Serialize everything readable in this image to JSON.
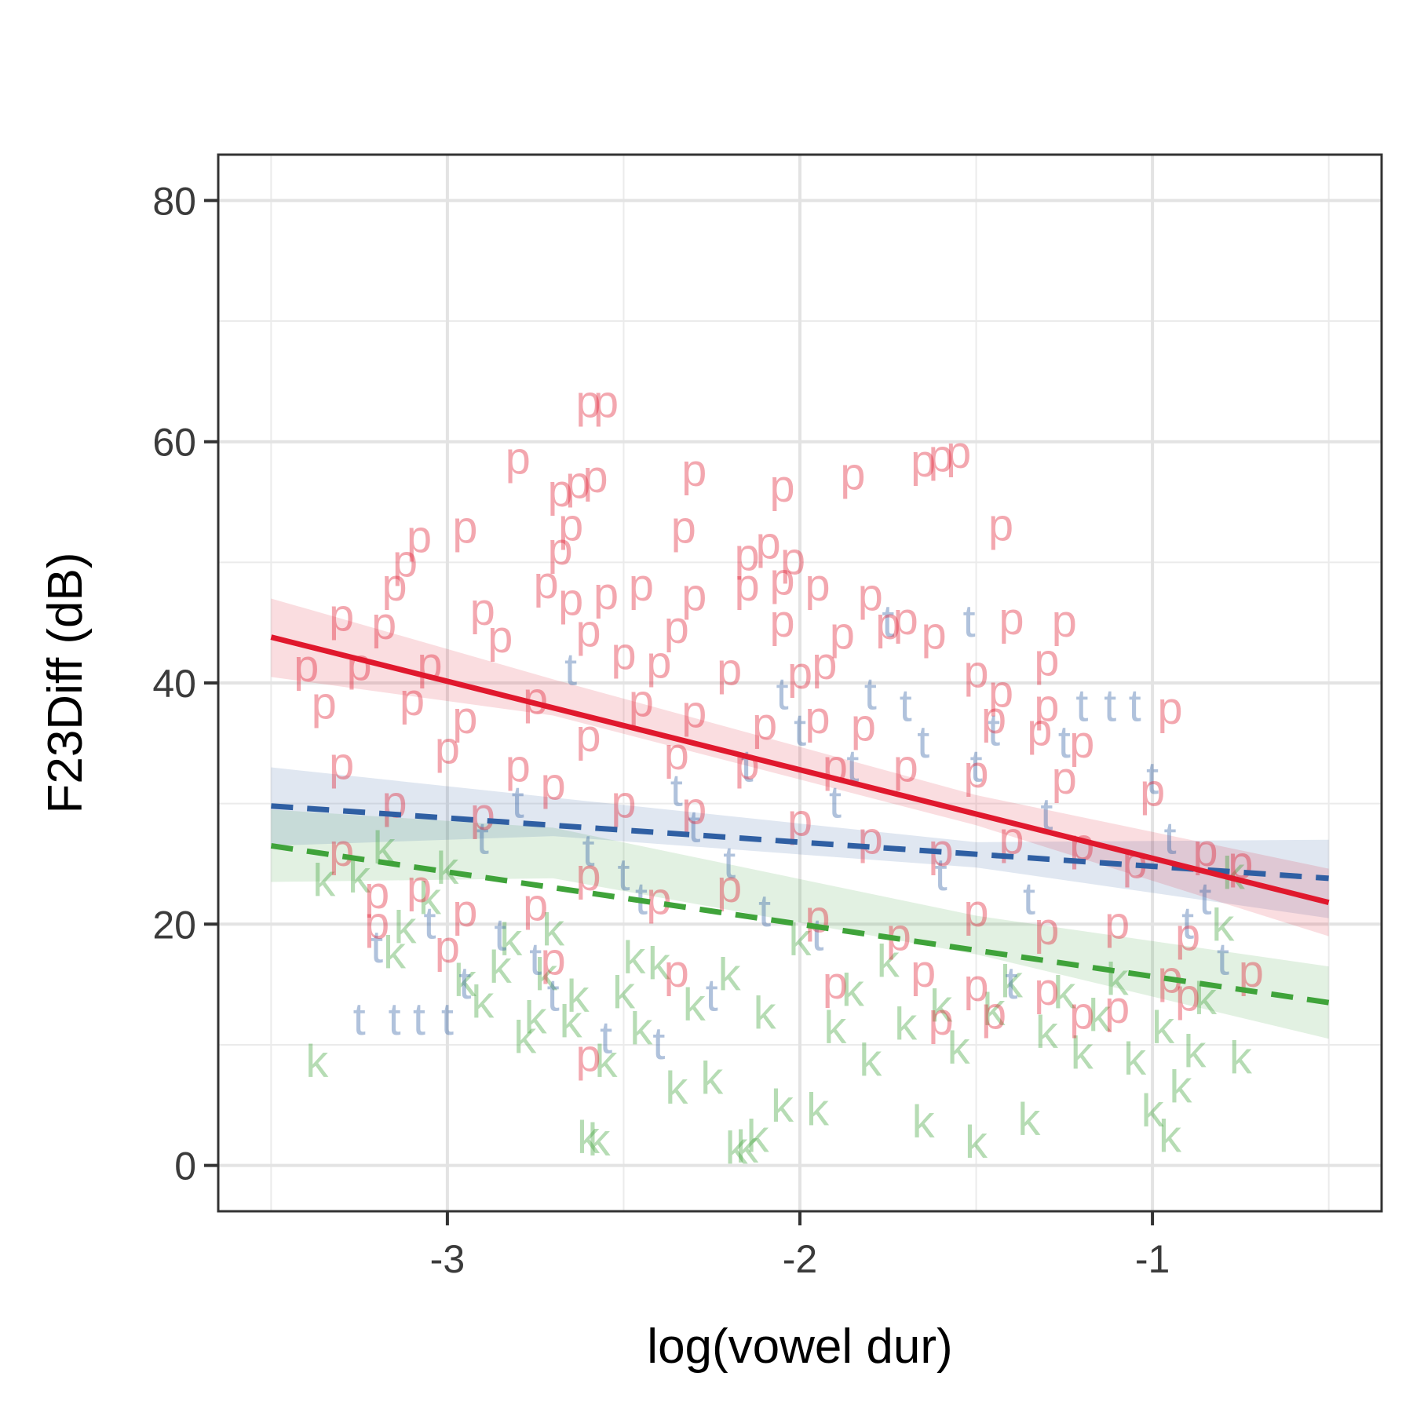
{
  "chart_data": {
    "type": "scatter",
    "title": "",
    "xlabel": "log(vowel dur)",
    "ylabel": "F23Diff (dB)",
    "xlim": [
      -3.65,
      -0.35
    ],
    "ylim": [
      -3.8,
      83.8
    ],
    "x_ticks": [
      -3,
      -2,
      -1
    ],
    "y_ticks": [
      0,
      20,
      40,
      60,
      80
    ],
    "x_minor": [
      -3.5,
      -2.5,
      -1.5,
      -0.5
    ],
    "y_minor": [
      10,
      30,
      50,
      70
    ],
    "grid": true,
    "legend": "none",
    "series": [
      {
        "label": "k",
        "color": "#3fa33a",
        "line_style": "dashed",
        "fit": {
          "x": [
            -3.5,
            -0.5
          ],
          "y": [
            26.5,
            13.5
          ]
        },
        "band": {
          "x": [
            -3.5,
            -2.7,
            -1.5,
            -0.5
          ],
          "lower": [
            23.5,
            23.8,
            17.5,
            10.5
          ],
          "upper": [
            29.5,
            28.0,
            20.7,
            16.5
          ]
        },
        "points": [
          [
            -3.37,
            8.5
          ],
          [
            -3.35,
            23.5
          ],
          [
            -3.25,
            23.8
          ],
          [
            -3.18,
            26.2
          ],
          [
            -3.15,
            17.5
          ],
          [
            -3.12,
            19.6
          ],
          [
            -3.05,
            22.0
          ],
          [
            -3.0,
            24.5
          ],
          [
            -2.95,
            15.2
          ],
          [
            -2.9,
            13.4
          ],
          [
            -2.85,
            16.3
          ],
          [
            -2.82,
            18.6
          ],
          [
            -2.78,
            10.5
          ],
          [
            -2.75,
            12.1
          ],
          [
            -2.72,
            15.7
          ],
          [
            -2.7,
            19.4
          ],
          [
            -2.65,
            11.8
          ],
          [
            -2.63,
            13.9
          ],
          [
            -2.6,
            2.2
          ],
          [
            -2.57,
            2.0
          ],
          [
            -2.55,
            8.5
          ],
          [
            -2.5,
            14.2
          ],
          [
            -2.47,
            17.1
          ],
          [
            -2.45,
            11.2
          ],
          [
            -2.4,
            16.6
          ],
          [
            -2.35,
            6.3
          ],
          [
            -2.3,
            13.2
          ],
          [
            -2.25,
            7.1
          ],
          [
            -2.2,
            15.7
          ],
          [
            -2.18,
            1.3
          ],
          [
            -2.15,
            1.4
          ],
          [
            -2.12,
            2.3
          ],
          [
            -2.1,
            12.5
          ],
          [
            -2.05,
            4.8
          ],
          [
            -2.0,
            18.6
          ],
          [
            -1.95,
            4.5
          ],
          [
            -1.9,
            11.3
          ],
          [
            -1.85,
            14.4
          ],
          [
            -1.8,
            8.6
          ],
          [
            -1.75,
            16.8
          ],
          [
            -1.7,
            11.6
          ],
          [
            -1.65,
            3.5
          ],
          [
            -1.6,
            13.1
          ],
          [
            -1.55,
            9.6
          ],
          [
            -1.5,
            1.8
          ],
          [
            -1.45,
            12.8
          ],
          [
            -1.4,
            15.1
          ],
          [
            -1.35,
            3.7
          ],
          [
            -1.3,
            10.9
          ],
          [
            -1.25,
            14.2
          ],
          [
            -1.2,
            9.2
          ],
          [
            -1.15,
            12.3
          ],
          [
            -1.1,
            15.3
          ],
          [
            -1.05,
            8.7
          ],
          [
            -1.0,
            4.4
          ],
          [
            -0.97,
            11.3
          ],
          [
            -0.95,
            2.3
          ],
          [
            -0.92,
            6.4
          ],
          [
            -0.88,
            9.3
          ],
          [
            -0.85,
            13.7
          ],
          [
            -0.8,
            19.8
          ],
          [
            -0.77,
            24.1
          ],
          [
            -0.75,
            8.8
          ]
        ]
      },
      {
        "label": "t",
        "color": "#2f5fa3",
        "line_style": "dashed",
        "fit": {
          "x": [
            -3.5,
            -0.5
          ],
          "y": [
            29.8,
            23.8
          ]
        },
        "band": {
          "x": [
            -3.5,
            -2.7,
            -1.5,
            -0.5
          ],
          "lower": [
            26.5,
            27.3,
            24.7,
            20.5
          ],
          "upper": [
            33.0,
            30.5,
            26.8,
            27.0
          ]
        },
        "points": [
          [
            -3.25,
            12.0
          ],
          [
            -3.2,
            18.0
          ],
          [
            -3.15,
            12.0
          ],
          [
            -3.08,
            12.0
          ],
          [
            -3.05,
            20.0
          ],
          [
            -3.0,
            12.0
          ],
          [
            -2.95,
            15.0
          ],
          [
            -2.9,
            27.0
          ],
          [
            -2.85,
            19.0
          ],
          [
            -2.8,
            30.0
          ],
          [
            -2.75,
            17.0
          ],
          [
            -2.7,
            14.0
          ],
          [
            -2.65,
            41.0
          ],
          [
            -2.6,
            26.0
          ],
          [
            -2.55,
            10.5
          ],
          [
            -2.5,
            24.0
          ],
          [
            -2.45,
            22.0
          ],
          [
            -2.4,
            10.0
          ],
          [
            -2.35,
            31.0
          ],
          [
            -2.3,
            28.0
          ],
          [
            -2.25,
            14.0
          ],
          [
            -2.2,
            25.0
          ],
          [
            -2.15,
            33.0
          ],
          [
            -2.1,
            21.0
          ],
          [
            -2.05,
            39.0
          ],
          [
            -2.0,
            36.0
          ],
          [
            -1.95,
            19.0
          ],
          [
            -1.9,
            30.0
          ],
          [
            -1.85,
            33.0
          ],
          [
            -1.8,
            39.0
          ],
          [
            -1.75,
            45.0
          ],
          [
            -1.7,
            38.0
          ],
          [
            -1.65,
            35.0
          ],
          [
            -1.6,
            24.0
          ],
          [
            -1.52,
            45.0
          ],
          [
            -1.5,
            33.0
          ],
          [
            -1.45,
            36.0
          ],
          [
            -1.4,
            15.0
          ],
          [
            -1.35,
            22.0
          ],
          [
            -1.3,
            29.0
          ],
          [
            -1.25,
            35.0
          ],
          [
            -1.2,
            38.0
          ],
          [
            -1.12,
            38.0
          ],
          [
            -1.05,
            38.0
          ],
          [
            -1.0,
            32.0
          ],
          [
            -0.95,
            27.0
          ],
          [
            -0.9,
            20.0
          ],
          [
            -0.85,
            22.0
          ],
          [
            -0.8,
            17.0
          ]
        ]
      },
      {
        "label": "p",
        "color": "#e0182d",
        "line_style": "solid",
        "fit": {
          "x": [
            -3.5,
            -0.5
          ],
          "y": [
            43.8,
            21.8
          ]
        },
        "band": {
          "x": [
            -3.5,
            -2.7,
            -1.5,
            -0.5
          ],
          "lower": [
            40.5,
            37.3,
            28.2,
            19.0
          ],
          "upper": [
            47.0,
            40.3,
            30.7,
            24.6
          ]
        },
        "points": [
          [
            -2.6,
            63.2
          ],
          [
            -2.55,
            63.2
          ],
          [
            -2.8,
            58.5
          ],
          [
            -2.3,
            57.5
          ],
          [
            -2.63,
            56.5
          ],
          [
            -2.58,
            57.0
          ],
          [
            -2.68,
            55.8
          ],
          [
            -2.05,
            56.2
          ],
          [
            -1.85,
            57.2
          ],
          [
            -1.65,
            58.3
          ],
          [
            -1.6,
            58.7
          ],
          [
            -1.55,
            59.0
          ],
          [
            -2.65,
            53.0
          ],
          [
            -2.33,
            52.8
          ],
          [
            -1.43,
            53.0
          ],
          [
            -3.08,
            52.0
          ],
          [
            -2.95,
            52.8
          ],
          [
            -2.68,
            51.0
          ],
          [
            -2.15,
            50.5
          ],
          [
            -2.09,
            51.5
          ],
          [
            -2.02,
            50.2
          ],
          [
            -3.12,
            50.0
          ],
          [
            -2.72,
            48.2
          ],
          [
            -2.55,
            47.3
          ],
          [
            -2.45,
            48.0
          ],
          [
            -2.3,
            47.2
          ],
          [
            -2.15,
            48.0
          ],
          [
            -2.05,
            48.5
          ],
          [
            -1.95,
            48.0
          ],
          [
            -1.8,
            47.2
          ],
          [
            -3.15,
            48.0
          ],
          [
            -2.65,
            46.8
          ],
          [
            -1.7,
            45.2
          ],
          [
            -1.4,
            45.2
          ],
          [
            -1.25,
            45.0
          ],
          [
            -3.3,
            45.5
          ],
          [
            -3.18,
            44.8
          ],
          [
            -2.9,
            46.0
          ],
          [
            -2.85,
            43.7
          ],
          [
            -2.6,
            44.2
          ],
          [
            -2.35,
            44.5
          ],
          [
            -2.05,
            45.0
          ],
          [
            -1.88,
            44.0
          ],
          [
            -1.75,
            44.8
          ],
          [
            -1.62,
            44.0
          ],
          [
            -1.3,
            41.8
          ],
          [
            -3.4,
            41.3
          ],
          [
            -3.25,
            41.4
          ],
          [
            -3.05,
            41.5
          ],
          [
            -2.5,
            42.3
          ],
          [
            -2.4,
            41.6
          ],
          [
            -2.2,
            41.0
          ],
          [
            -2.0,
            40.7
          ],
          [
            -1.93,
            41.5
          ],
          [
            -1.5,
            40.8
          ],
          [
            -1.43,
            39.2
          ],
          [
            -1.3,
            38.0
          ],
          [
            -3.35,
            38.2
          ],
          [
            -3.1,
            38.5
          ],
          [
            -2.95,
            37.0
          ],
          [
            -2.75,
            38.6
          ],
          [
            -2.45,
            38.4
          ],
          [
            -2.3,
            37.5
          ],
          [
            -2.1,
            36.5
          ],
          [
            -1.95,
            37.0
          ],
          [
            -1.82,
            36.4
          ],
          [
            -1.45,
            37.0
          ],
          [
            -1.32,
            36.0
          ],
          [
            -1.2,
            35.0
          ],
          [
            -0.95,
            37.8
          ],
          [
            -3.3,
            33.2
          ],
          [
            -3.0,
            34.5
          ],
          [
            -2.8,
            33.0
          ],
          [
            -2.6,
            35.5
          ],
          [
            -2.35,
            34.0
          ],
          [
            -2.15,
            33.2
          ],
          [
            -1.9,
            33.0
          ],
          [
            -1.7,
            33.0
          ],
          [
            -1.5,
            32.5
          ],
          [
            -1.25,
            32.0
          ],
          [
            -1.0,
            31.0
          ],
          [
            -3.15,
            30.0
          ],
          [
            -2.9,
            29.0
          ],
          [
            -2.7,
            31.5
          ],
          [
            -2.5,
            30.0
          ],
          [
            -2.3,
            29.5
          ],
          [
            -2.0,
            28.5
          ],
          [
            -1.8,
            27.0
          ],
          [
            -1.6,
            26.0
          ],
          [
            -1.4,
            27.0
          ],
          [
            -1.2,
            26.5
          ],
          [
            -1.05,
            25.0
          ],
          [
            -0.85,
            26.0
          ],
          [
            -0.75,
            25.0
          ],
          [
            -3.3,
            26.0
          ],
          [
            -3.2,
            22.5
          ],
          [
            -3.08,
            23.0
          ],
          [
            -2.95,
            21.0
          ],
          [
            -2.75,
            21.5
          ],
          [
            -2.6,
            24.0
          ],
          [
            -2.4,
            22.0
          ],
          [
            -2.2,
            23.0
          ],
          [
            -1.95,
            20.5
          ],
          [
            -1.72,
            19.0
          ],
          [
            -1.5,
            21.0
          ],
          [
            -1.3,
            19.5
          ],
          [
            -1.1,
            20.0
          ],
          [
            -0.9,
            19.0
          ],
          [
            -3.2,
            20.0
          ],
          [
            -3.0,
            18.0
          ],
          [
            -2.7,
            17.0
          ],
          [
            -2.35,
            16.0
          ],
          [
            -1.65,
            16.0
          ],
          [
            -1.5,
            14.8
          ],
          [
            -1.3,
            14.5
          ],
          [
            -1.1,
            13.0
          ],
          [
            -0.95,
            15.5
          ],
          [
            -0.72,
            16.0
          ],
          [
            -2.6,
            9.0
          ],
          [
            -1.9,
            15.0
          ],
          [
            -1.6,
            12.0
          ],
          [
            -1.45,
            12.5
          ],
          [
            -1.2,
            12.5
          ],
          [
            -0.9,
            14.0
          ]
        ]
      }
    ]
  }
}
